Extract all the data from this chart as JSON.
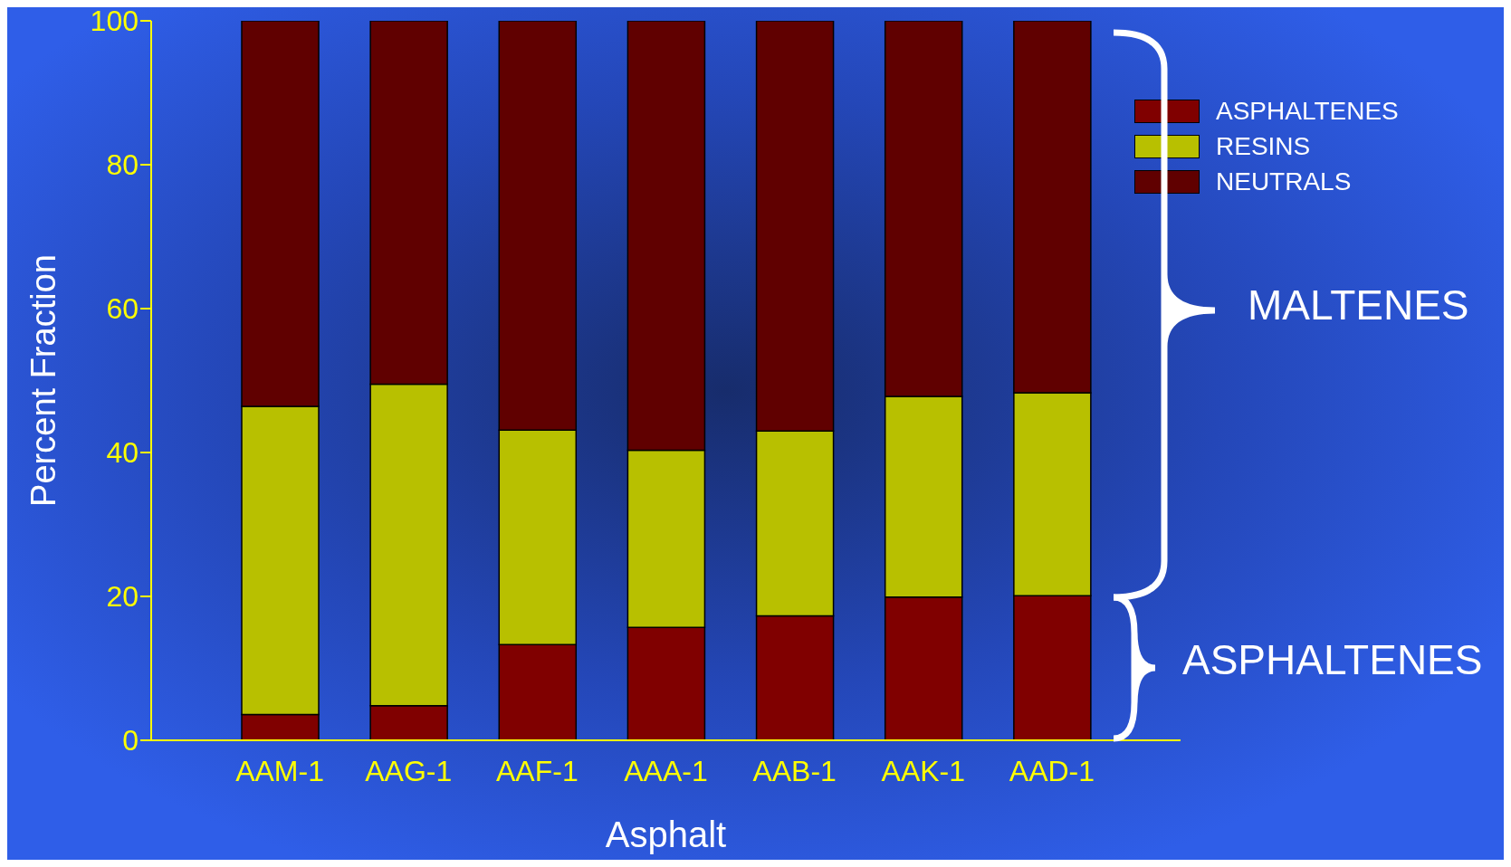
{
  "chart_data": {
    "type": "bar",
    "stacked": true,
    "xlabel": "Asphalt",
    "ylabel": "Percent Fraction",
    "categories": [
      "AAM-1",
      "AAG-1",
      "AAF-1",
      "AAA-1",
      "AAB-1",
      "AAK-1",
      "AAD-1"
    ],
    "series": [
      {
        "name": "ASPHALTENES",
        "color": "#800000",
        "values": [
          3.6,
          4.8,
          13.3,
          15.7,
          17.3,
          19.9,
          20.1
        ]
      },
      {
        "name": "RESINS",
        "color": "#b8c000",
        "values": [
          42.8,
          44.7,
          29.8,
          24.6,
          25.7,
          27.9,
          28.2
        ]
      },
      {
        "name": "NEUTRALS",
        "color": "#600000",
        "values": [
          53.6,
          50.5,
          56.9,
          59.7,
          57.0,
          52.2,
          51.7
        ]
      }
    ],
    "ylim": [
      0,
      100
    ],
    "yticks": [
      0,
      20,
      40,
      60,
      80,
      100
    ],
    "grid": false,
    "legend": "top right",
    "annotations": [
      "MALTENES",
      "ASPHALTENES"
    ]
  }
}
